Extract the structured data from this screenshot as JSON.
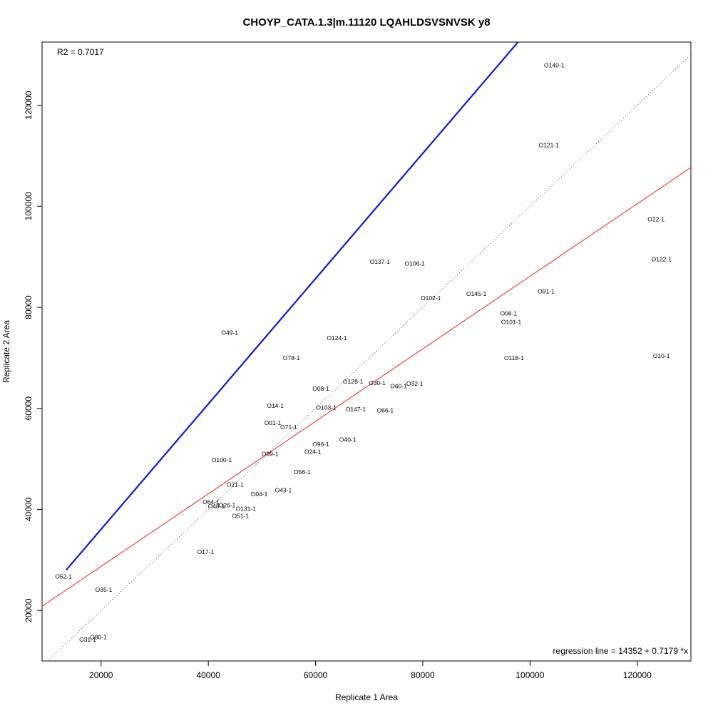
{
  "chart_data": {
    "type": "scatter",
    "title": "CHOYP_CATA.1.3|m.11120 LQAHLDSVSNVSK y8",
    "xlabel": "Replicate 1 Area",
    "ylabel": "Replicate 2 Area",
    "xlim": [
      9000,
      130000
    ],
    "ylim": [
      10000,
      132500
    ],
    "x_ticks": [
      20000,
      40000,
      60000,
      80000,
      100000,
      120000
    ],
    "y_ticks": [
      20000,
      40000,
      60000,
      80000,
      100000,
      120000
    ],
    "x_tick_labels": [
      "20000",
      "40000",
      "60000",
      "80000",
      "100000",
      "120000"
    ],
    "y_tick_labels": [
      "20000",
      "40000",
      "60000",
      "80000",
      "100000",
      "120000"
    ],
    "r2_text": "R2 = 0.7017",
    "regression_text": "regression line = 14352 + 0.7179 *x",
    "regression": {
      "intercept": 14352,
      "slope": 0.7179,
      "color": "#e8473f"
    },
    "identity_line": {
      "intercept": 0,
      "slope": 1,
      "style": "dotted",
      "color": "#555555"
    },
    "blue_line": {
      "x": [
        13500,
        98000
      ],
      "y": [
        28000,
        132800
      ],
      "color": "#1018c8"
    },
    "points": [
      {
        "label": "O140-1",
        "x": 104500,
        "y": 127800
      },
      {
        "label": "O121-1",
        "x": 103500,
        "y": 112000
      },
      {
        "label": "O22-1",
        "x": 123500,
        "y": 97300
      },
      {
        "label": "O122-1",
        "x": 124500,
        "y": 89400
      },
      {
        "label": "O137-1",
        "x": 72000,
        "y": 88900
      },
      {
        "label": "O106-1",
        "x": 78500,
        "y": 88600
      },
      {
        "label": "O145-1",
        "x": 90000,
        "y": 82600
      },
      {
        "label": "O91-1",
        "x": 103000,
        "y": 83100
      },
      {
        "label": "O102-1",
        "x": 81500,
        "y": 81700
      },
      {
        "label": "O06-1",
        "x": 96000,
        "y": 78700
      },
      {
        "label": "O101-1",
        "x": 96500,
        "y": 77000
      },
      {
        "label": "O49-1",
        "x": 44000,
        "y": 74900
      },
      {
        "label": "O124-1",
        "x": 64000,
        "y": 73800
      },
      {
        "label": "O10-1",
        "x": 124500,
        "y": 70300
      },
      {
        "label": "O118-1",
        "x": 97000,
        "y": 69900
      },
      {
        "label": "O78-1",
        "x": 55500,
        "y": 69900
      },
      {
        "label": "O128-1",
        "x": 67000,
        "y": 65200
      },
      {
        "label": "O30-1",
        "x": 71500,
        "y": 64900
      },
      {
        "label": "O32-1",
        "x": 78500,
        "y": 64800
      },
      {
        "label": "O60-1",
        "x": 75500,
        "y": 64300
      },
      {
        "label": "O08-1",
        "x": 61000,
        "y": 63800
      },
      {
        "label": "O14-1",
        "x": 52500,
        "y": 60400
      },
      {
        "label": "O103-1",
        "x": 62000,
        "y": 60100
      },
      {
        "label": "O147-1",
        "x": 67500,
        "y": 59700
      },
      {
        "label": "O66-1",
        "x": 73000,
        "y": 59500
      },
      {
        "label": "O01-1",
        "x": 52000,
        "y": 57000
      },
      {
        "label": "O71-1",
        "x": 55000,
        "y": 56200
      },
      {
        "label": "O40-1",
        "x": 66000,
        "y": 53700
      },
      {
        "label": "O96-1",
        "x": 61000,
        "y": 52800
      },
      {
        "label": "O24-1",
        "x": 59500,
        "y": 51300
      },
      {
        "label": "O99-1",
        "x": 51500,
        "y": 50900
      },
      {
        "label": "O100-1",
        "x": 42500,
        "y": 49700
      },
      {
        "label": "O56-1",
        "x": 57500,
        "y": 47300
      },
      {
        "label": "O21-1",
        "x": 45000,
        "y": 44800
      },
      {
        "label": "O43-1",
        "x": 54000,
        "y": 43700
      },
      {
        "label": "O04-1",
        "x": 49500,
        "y": 42900
      },
      {
        "label": "O64-1",
        "x": 40500,
        "y": 41400
      },
      {
        "label": "O26-1",
        "x": 43500,
        "y": 40700
      },
      {
        "label": "O48-1",
        "x": 41500,
        "y": 40500
      },
      {
        "label": "O131-1",
        "x": 47000,
        "y": 40000
      },
      {
        "label": "O51-1",
        "x": 46000,
        "y": 38600
      },
      {
        "label": "O17-1",
        "x": 39500,
        "y": 31500
      },
      {
        "label": "O52-1",
        "x": 13000,
        "y": 26600
      },
      {
        "label": "O35-1",
        "x": 20500,
        "y": 24000
      },
      {
        "label": "O80-1",
        "x": 19500,
        "y": 14600
      },
      {
        "label": "O31-1",
        "x": 17500,
        "y": 14100
      }
    ]
  }
}
